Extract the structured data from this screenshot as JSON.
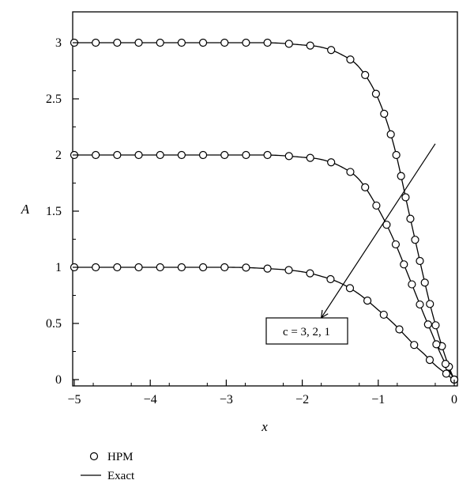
{
  "chart_data": {
    "type": "line",
    "xlabel": "x",
    "ylabel": "A",
    "xlim": [
      -5,
      0
    ],
    "ylim": [
      0,
      3.2
    ],
    "x_ticks": [
      "−5",
      "−4",
      "−3",
      "−2",
      "−1",
      "0"
    ],
    "x_tick_values": [
      -5,
      -4,
      -3,
      -2,
      -1,
      0
    ],
    "y_ticks": [
      "0",
      "0.5",
      "1",
      "1.5",
      "2",
      "2.5",
      "3"
    ],
    "y_tick_values": [
      0,
      0.5,
      1,
      1.5,
      2,
      2.5,
      3
    ],
    "x": [
      -5,
      -4.5,
      -4,
      -3.5,
      -3,
      -2.5,
      -2,
      -1.75,
      -1.5,
      -1.25,
      -1,
      -0.8,
      -0.6,
      -0.5,
      -0.4,
      -0.3,
      -0.2,
      -0.1,
      -0.05,
      0
    ],
    "series": [
      {
        "c": 3,
        "values": [
          3.0,
          3.0,
          3.0,
          3.0,
          3.0,
          3.0,
          2.98,
          2.96,
          2.9,
          2.78,
          2.5,
          2.1,
          1.5,
          1.2,
          0.9,
          0.62,
          0.38,
          0.17,
          0.08,
          0.0
        ]
      },
      {
        "c": 2,
        "values": [
          2.0,
          2.0,
          2.0,
          2.0,
          2.0,
          2.0,
          1.98,
          1.96,
          1.9,
          1.78,
          1.52,
          1.25,
          0.92,
          0.75,
          0.58,
          0.42,
          0.26,
          0.12,
          0.06,
          0.0
        ]
      },
      {
        "c": 1,
        "values": [
          1.0,
          1.0,
          1.0,
          1.0,
          1.0,
          0.99,
          0.96,
          0.92,
          0.86,
          0.76,
          0.62,
          0.5,
          0.36,
          0.29,
          0.23,
          0.16,
          0.1,
          0.05,
          0.02,
          0.0
        ]
      }
    ],
    "hpm_marker_spacing": 0.3,
    "annotation": {
      "text": "c = 3, 2, 1",
      "arrow_from": [
        -0.25,
        2.1
      ],
      "arrow_to": [
        -1.75,
        0.55
      ]
    },
    "legend": [
      {
        "marker": "circle",
        "label": "HPM"
      },
      {
        "marker": "line",
        "label": "Exact"
      }
    ],
    "legend_placement": "bottom-left",
    "grid": false,
    "colors": {
      "line": "#000000",
      "background": "#ffffff"
    }
  }
}
